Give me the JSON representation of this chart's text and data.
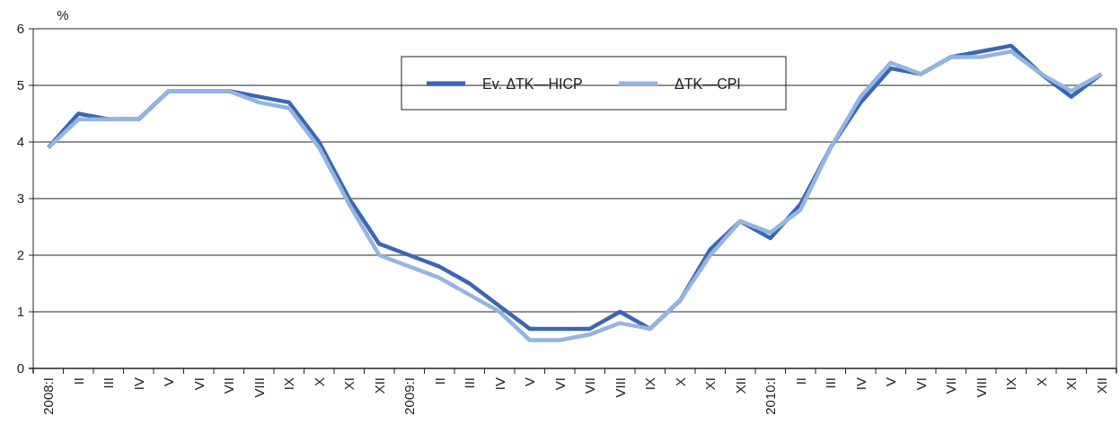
{
  "chart_data": {
    "type": "line",
    "ylabel": "%",
    "categories": [
      "2008:I",
      "II",
      "III",
      "IV",
      "V",
      "VI",
      "VII",
      "VIII",
      "IX",
      "X",
      "XI",
      "XII",
      "2009:I",
      "II",
      "III",
      "IV",
      "V",
      "VI",
      "VII",
      "VIII",
      "IX",
      "X",
      "XI",
      "XII",
      "2010:I",
      "II",
      "III",
      "IV",
      "V",
      "VI",
      "VII",
      "VIII",
      "IX",
      "X",
      "XI",
      "XII"
    ],
    "series": [
      {
        "name": "Ev. ΔTK—HICP",
        "color": "#3a66b3",
        "values": [
          3.9,
          4.5,
          4.4,
          4.4,
          4.9,
          4.9,
          4.9,
          4.8,
          4.7,
          4.0,
          3.0,
          2.2,
          2.0,
          1.8,
          1.5,
          1.1,
          0.7,
          0.7,
          0.7,
          1.0,
          0.7,
          1.2,
          2.1,
          2.6,
          2.3,
          2.9,
          3.9,
          4.7,
          5.3,
          5.2,
          5.5,
          5.6,
          5.7,
          5.2,
          4.8,
          5.2
        ]
      },
      {
        "name": "ΔTK—CPI",
        "color": "#94b5e0",
        "values": [
          3.9,
          4.4,
          4.4,
          4.4,
          4.9,
          4.9,
          4.9,
          4.7,
          4.6,
          3.9,
          2.9,
          2.0,
          1.8,
          1.6,
          1.3,
          1.0,
          0.5,
          0.5,
          0.6,
          0.8,
          0.7,
          1.2,
          2.0,
          2.6,
          2.4,
          2.8,
          3.9,
          4.8,
          5.4,
          5.2,
          5.5,
          5.5,
          5.6,
          5.2,
          4.9,
          5.2
        ]
      }
    ],
    "ylim": [
      0,
      6
    ],
    "yticks": [
      0,
      1,
      2,
      3,
      4,
      5,
      6
    ],
    "grid": "y",
    "legend": "top",
    "line_style": "solid",
    "marker": "none"
  }
}
